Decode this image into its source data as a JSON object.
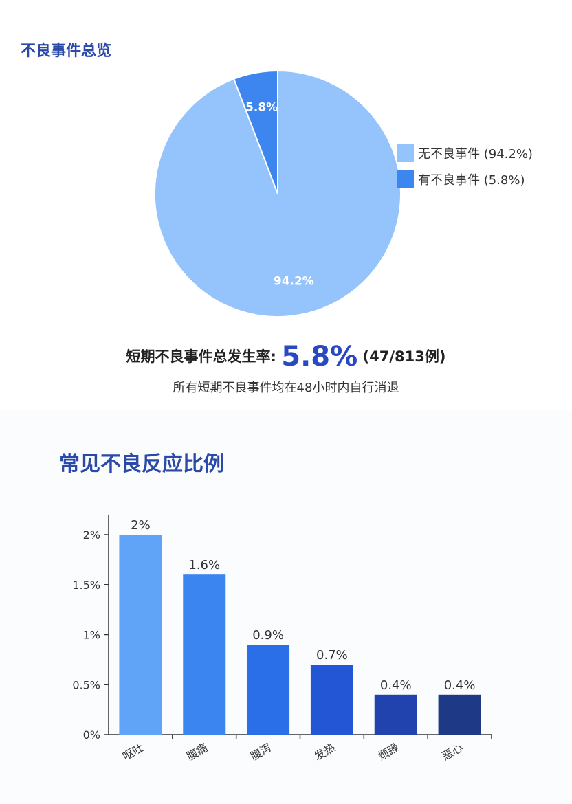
{
  "section1": {
    "title": "不良事件总览",
    "summary_prefix": "短期不良事件总发生率:",
    "summary_rate": "5.8%",
    "summary_count": "(47/813例)",
    "note": "所有短期不良事件均在48小时内自行消退"
  },
  "section2": {
    "title": "常见不良反应比例"
  },
  "chart_data": [
    {
      "type": "pie",
      "title": "",
      "slices": [
        {
          "label": "无不良事件 (94.2%)",
          "value": 94.2,
          "data_label": "94.2%",
          "color": "#94c4fb"
        },
        {
          "label": "有不良事件 (5.8%)",
          "value": 5.8,
          "data_label": "5.8%",
          "color": "#3d86f0"
        }
      ],
      "legend_position": "right"
    },
    {
      "type": "bar",
      "title": "",
      "categories": [
        "呕吐",
        "腹痛",
        "腹泻",
        "发热",
        "烦躁",
        "恶心"
      ],
      "values": [
        2,
        1.6,
        0.9,
        0.7,
        0.4,
        0.4
      ],
      "data_labels": [
        "2%",
        "1.6%",
        "0.9%",
        "0.7%",
        "0.4%",
        "0.4%"
      ],
      "colors": [
        "#5fa4f6",
        "#3a85f0",
        "#2a6ee8",
        "#2356d5",
        "#2043ad",
        "#1e3a86"
      ],
      "ylim": [
        0,
        2.2
      ],
      "y_ticks": [
        0,
        0.5,
        1,
        1.5,
        2
      ],
      "y_tick_labels": [
        "0%",
        "0.5%",
        "1%",
        "1.5%",
        "2%"
      ],
      "grid": false
    }
  ]
}
